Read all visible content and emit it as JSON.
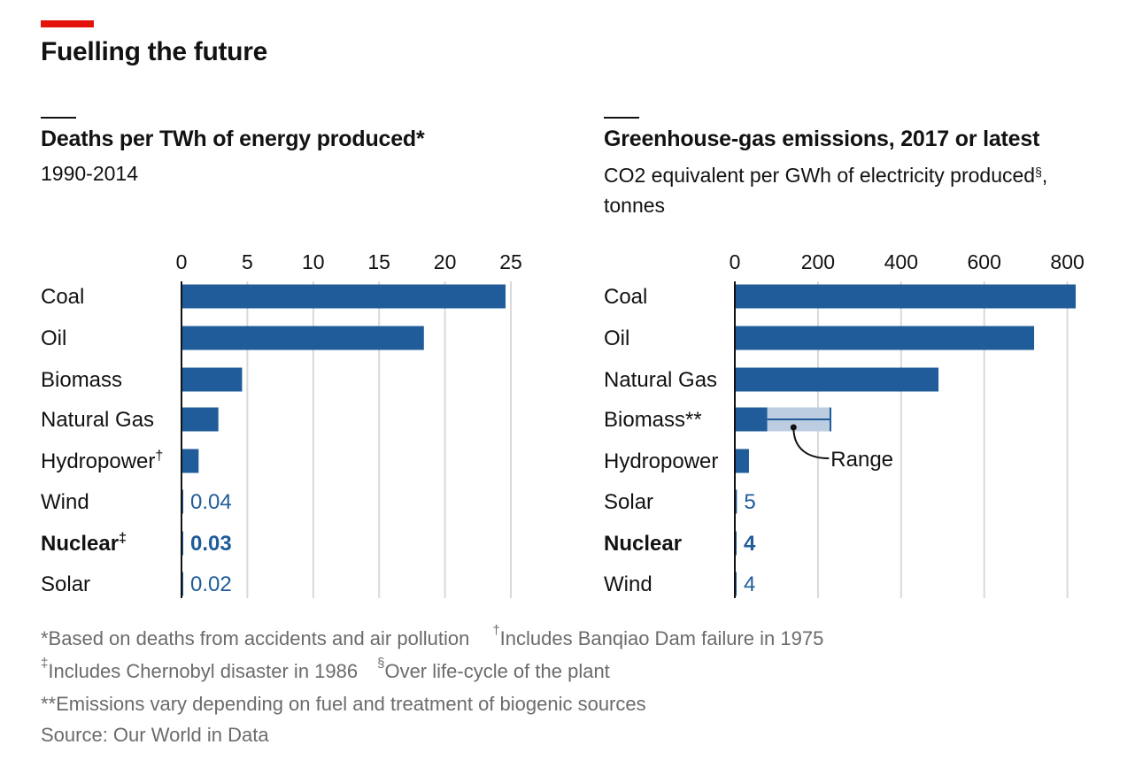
{
  "title": "Fuelling the future",
  "chart_data": [
    {
      "type": "bar",
      "orientation": "horizontal",
      "title": "Deaths per TWh of energy produced*",
      "subtitle": "1990-2014",
      "categories": [
        "Coal",
        "Oil",
        "Biomass",
        "Natural Gas",
        "Hydropower",
        "Wind",
        "Nuclear",
        "Solar"
      ],
      "category_marks": [
        "",
        "",
        "",
        "",
        "†",
        "",
        "‡",
        ""
      ],
      "values": [
        24.6,
        18.4,
        4.6,
        2.8,
        1.3,
        0.04,
        0.03,
        0.02
      ],
      "value_labels": [
        "",
        "",
        "",
        "",
        "",
        "0.04",
        "0.03",
        "0.02"
      ],
      "highlight": "Nuclear",
      "xticks": [
        "0",
        "5",
        "10",
        "15",
        "20",
        "25"
      ],
      "xlim": [
        0,
        25
      ],
      "grid": true,
      "bar_color": "#1f5c99"
    },
    {
      "type": "bar",
      "orientation": "horizontal",
      "title": "Greenhouse-gas emissions, 2017 or latest",
      "subtitle_line1": "CO2 equivalent per GWh of electricity produced",
      "subtitle_mark": "§",
      "subtitle_comma": ",",
      "subtitle_line2": "tonnes",
      "categories": [
        "Coal",
        "Oil",
        "Natural Gas",
        "Biomass**",
        "Hydropower",
        "Solar",
        "Nuclear",
        "Wind"
      ],
      "values": [
        820,
        720,
        490,
        78,
        34,
        5,
        4,
        4
      ],
      "value_labels": [
        "",
        "",
        "",
        "",
        "",
        "5",
        "4",
        "4"
      ],
      "range": {
        "category": "Biomass**",
        "low": 78,
        "high": 230,
        "label": "Range"
      },
      "highlight": "Nuclear",
      "xticks": [
        "0",
        "200",
        "400",
        "600",
        "800"
      ],
      "xlim": [
        0,
        820
      ],
      "grid": true,
      "bar_color": "#1f5c99",
      "range_color": "#bccde2"
    }
  ],
  "notes": {
    "line1a": "*Based on deaths from accidents and air pollution",
    "line1b_mark": "†",
    "line1b": "Includes Banqiao Dam failure in 1975",
    "line2a_mark": "‡",
    "line2a": "Includes Chernobyl disaster in 1986",
    "line2b_mark": "§",
    "line2b": "Over life-cycle of the plant",
    "line3": "**Emissions vary depending on fuel and treatment of biogenic sources",
    "source": "Source: Our World in Data"
  }
}
